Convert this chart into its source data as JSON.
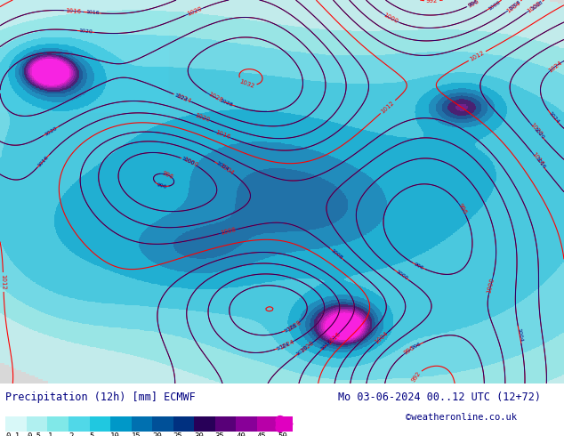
{
  "title_left": "Precipitation (12h) [mm] ECMWF",
  "title_right": "Mo 03-06-2024 00..12 UTC (12+72)",
  "copyright": "©weatheronline.co.uk",
  "colorbar_values": [
    0.1,
    0.5,
    1,
    2,
    5,
    10,
    15,
    20,
    25,
    30,
    35,
    40,
    45,
    50
  ],
  "colorbar_colors": [
    "#e0f8f8",
    "#c0f0f0",
    "#90e8e8",
    "#60d8e8",
    "#30c8e0",
    "#00a8d0",
    "#0080b8",
    "#0060a0",
    "#004088",
    "#300060",
    "#600080",
    "#9000a0",
    "#c000b0",
    "#e000c8",
    "#ff00e0"
  ],
  "bg_color": "#ffffff",
  "map_bg": "#d8d8d8",
  "colorbar_arrow_color": "#e000d0",
  "label_color": "#000000",
  "title_color": "#000080",
  "copyright_color": "#000080"
}
